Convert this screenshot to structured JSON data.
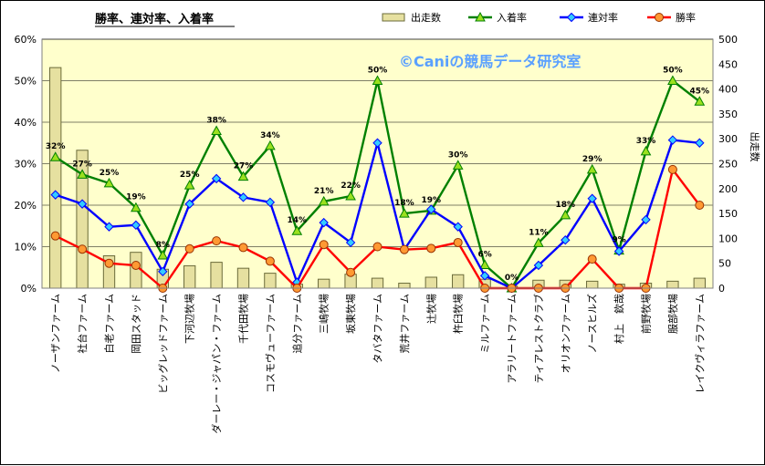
{
  "chart_data": {
    "type": "bar",
    "title": "勝率、連対率、入着率",
    "watermark": "©Caniの競馬データ研究室",
    "ylabel_right": "出走数",
    "ylim_left": [
      0,
      60
    ],
    "ylim_right": [
      0,
      500
    ],
    "left_ticks": [
      "0%",
      "10%",
      "20%",
      "30%",
      "40%",
      "50%",
      "60%"
    ],
    "right_ticks": [
      "0",
      "50",
      "100",
      "150",
      "200",
      "250",
      "300",
      "350",
      "400",
      "450",
      "500"
    ],
    "grid": true,
    "legend_position": "top",
    "colors": {
      "plot_bg": "#ffffcc",
      "bar_fill": "#e6e0a0",
      "bar_stroke": "#6b6b3a",
      "place": "#008000",
      "place_marker": "#9be01f",
      "rentai": "#0000ff",
      "rentai_marker": "#33ccff",
      "win": "#ff0000",
      "win_marker": "#ff9933"
    },
    "categories": [
      "ノーザンファーム",
      "社台ファーム",
      "白老ファーム",
      "岡田スタッド",
      "ビッグレッドファーム",
      "下河辺牧場",
      "ダーレー・ジャパン・ファーム",
      "千代田牧場",
      "コスモヴューファーム",
      "追分ファーム",
      "三嶋牧場",
      "坂東牧場",
      "タバタファーム",
      "荒井ファーム",
      "辻牧場",
      "杵臼牧場",
      "ミルファーム",
      "アラリートファーム",
      "ティアレストクラブ",
      "オリオンファーム",
      "ノースヒルズ",
      "村上　欽哉",
      "前野牧場",
      "服部牧場",
      "レイクヴィラファーム"
    ],
    "series": [
      {
        "name": "出走数",
        "axis": "right",
        "values": [
          443,
          277,
          65,
          72,
          38,
          45,
          52,
          40,
          30,
          8,
          18,
          28,
          20,
          10,
          22,
          27,
          18,
          4,
          16,
          16,
          14,
          8,
          10,
          14,
          20
        ]
      },
      {
        "name": "入着率",
        "axis": "left",
        "values": [
          31.6,
          27.4,
          25.3,
          19.4,
          7.9,
          24.8,
          37.9,
          26.9,
          34.3,
          13.8,
          20.9,
          22.2,
          50,
          18,
          18.7,
          29.6,
          5.6,
          0,
          10.9,
          17.6,
          28.6,
          9.1,
          33,
          50,
          45
        ]
      },
      {
        "name": "連対率",
        "axis": "left",
        "values": [
          22.5,
          20.3,
          14.8,
          15.2,
          4,
          20.3,
          26.4,
          21.9,
          20.7,
          1.4,
          15.8,
          11,
          35,
          9.3,
          19,
          14.8,
          3,
          0,
          5.5,
          11.6,
          21.6,
          8.9,
          16.5,
          35.7,
          35
        ]
      },
      {
        "name": "勝率",
        "axis": "left",
        "values": [
          12.6,
          9.4,
          6,
          5.5,
          0,
          9.5,
          11.4,
          9.8,
          6.5,
          0,
          10.5,
          3.8,
          10,
          9.3,
          9.6,
          11,
          0,
          0,
          0,
          0,
          7,
          0,
          0,
          28.6,
          20
        ]
      }
    ],
    "data_labels": [
      "32%",
      "27%",
      "25%",
      "19%",
      "8%",
      "25%",
      "38%",
      "27%",
      "34%",
      "14%",
      "21%",
      "22%",
      "50%",
      "18%",
      "19%",
      "30%",
      "6%",
      "0%",
      "11%",
      "18%",
      "29%",
      "9%",
      "33%",
      "50%",
      "45%"
    ]
  }
}
